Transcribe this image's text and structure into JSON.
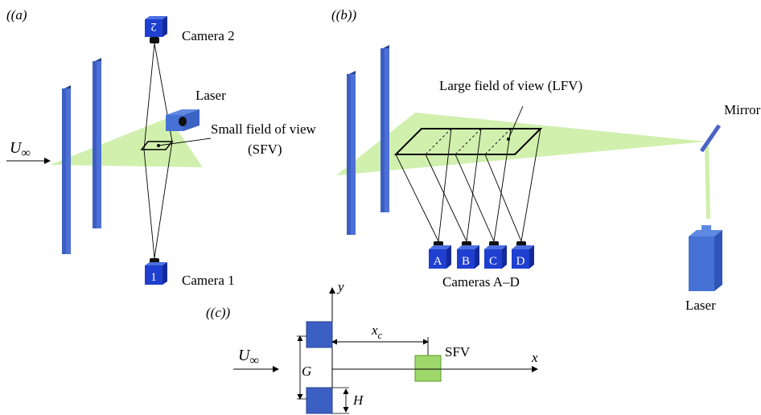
{
  "panels": {
    "a": "(a)",
    "b": "(b)",
    "c": "(c)"
  },
  "panel_a": {
    "camera2": "Camera 2",
    "camera1": "Camera 1",
    "camera2_id": "2",
    "camera1_id": "1",
    "laser": "Laser",
    "sfv_line1": "Small field of view",
    "sfv_line2": "(SFV)",
    "freestream": "U",
    "freestream_sub": "∞"
  },
  "panel_b": {
    "lfv": "Large field of view (LFV)",
    "mirror": "Mirror",
    "laser": "Laser",
    "cameras_label": "Cameras A–D",
    "camera_ids": [
      "A",
      "B",
      "C",
      "D"
    ]
  },
  "panel_c": {
    "y_axis": "y",
    "x_axis": "x",
    "xc": "x",
    "xc_sub": "c",
    "sfv": "SFV",
    "gap": "G",
    "height": "H",
    "freestream": "U",
    "freestream_sub": "∞"
  },
  "colors": {
    "plate": "#3c5fc4",
    "plate_dark": "#24408e",
    "camera": "#1f3fd0",
    "laser_sheet": "#c9eda0",
    "sfv_box": "#9ed86a",
    "mirror": "#4a62c8"
  }
}
